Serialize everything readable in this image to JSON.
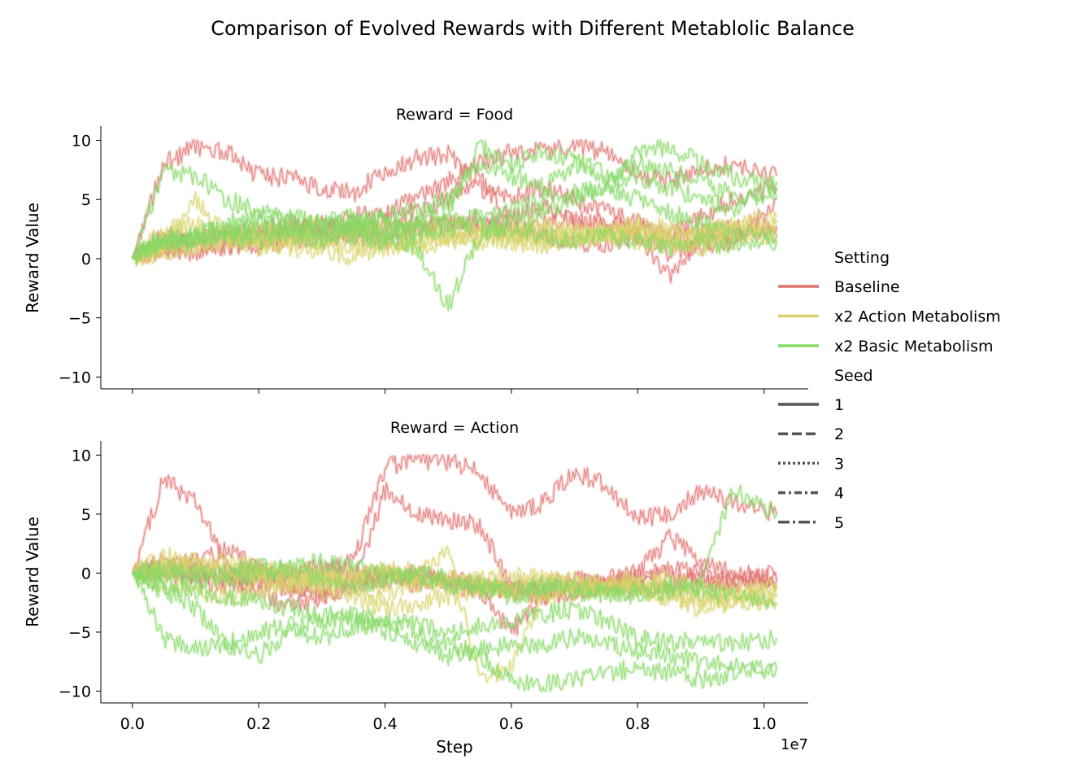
{
  "figure": {
    "title": "Comparison of Evolved Rewards with Different Metablolic Balance",
    "x_label": "Step",
    "x_offset_label": "1e7",
    "y_label": "Reward Value"
  },
  "legend": {
    "setting_title": "Setting",
    "seed_title": "Seed",
    "settings": [
      {
        "label": "Baseline",
        "color": "#e07370"
      },
      {
        "label": "x2 Action Metabolism",
        "color": "#d9d36a"
      },
      {
        "label": "x2 Basic Metabolism",
        "color": "#86d964"
      }
    ],
    "seeds": [
      {
        "label": "1",
        "dash": "solid"
      },
      {
        "label": "2",
        "dash": "dashed"
      },
      {
        "label": "3",
        "dash": "dotted"
      },
      {
        "label": "4",
        "dash": "dashdot-short"
      },
      {
        "label": "5",
        "dash": "dashdot-long"
      }
    ]
  },
  "chart_data": [
    {
      "type": "line",
      "title": "Reward = Food",
      "xlabel": "",
      "ylabel": "Reward Value",
      "xlim": [
        -0.05,
        1.07
      ],
      "ylim": [
        -11,
        11.2
      ],
      "x_unit": "1e7 steps",
      "xticks": [
        "0.0",
        "0.2",
        "0.4",
        "0.6",
        "0.8",
        "1.0"
      ],
      "yticks": [
        "10",
        "5",
        "0",
        "−5",
        "−10"
      ],
      "ytick_values": [
        10,
        5,
        0,
        -5,
        -10
      ],
      "grid": false,
      "legend_position": "right",
      "x": [
        0.0,
        0.05,
        0.1,
        0.15,
        0.2,
        0.25,
        0.3,
        0.35,
        0.4,
        0.45,
        0.5,
        0.55,
        0.6,
        0.65,
        0.7,
        0.75,
        0.8,
        0.85,
        0.9,
        0.95,
        1.02
      ],
      "series": [
        {
          "name": "Baseline",
          "seed": "1",
          "values": [
            0,
            1.2,
            1.6,
            1.8,
            1.5,
            2.0,
            2.2,
            2.5,
            2.4,
            2.8,
            3.0,
            2.5,
            3.5,
            4.5,
            3.0,
            2.8,
            2.5,
            2.0,
            2.2,
            2.5,
            2.8
          ]
        },
        {
          "name": "Baseline",
          "seed": "2",
          "values": [
            0,
            8.0,
            9.5,
            9.0,
            7.0,
            6.8,
            6.0,
            5.5,
            7.5,
            8.5,
            8.8,
            6.0,
            5.0,
            6.0,
            5.0,
            4.0,
            3.0,
            2.0,
            3.5,
            5.0,
            6.0
          ]
        },
        {
          "name": "Baseline",
          "seed": "3",
          "values": [
            0,
            0.8,
            1.0,
            1.2,
            1.0,
            1.5,
            1.8,
            2.0,
            1.5,
            2.5,
            3.0,
            3.5,
            2.5,
            3.0,
            3.5,
            3.0,
            2.0,
            -1.5,
            1.5,
            2.0,
            2.5
          ]
        },
        {
          "name": "Baseline",
          "seed": "4",
          "values": [
            0,
            2.0,
            1.5,
            2.2,
            2.5,
            3.0,
            2.5,
            3.5,
            4.0,
            5.0,
            6.5,
            8.0,
            9.0,
            9.2,
            9.5,
            9.0,
            7.0,
            6.5,
            7.5,
            8.0,
            7.0
          ]
        },
        {
          "name": "Baseline",
          "seed": "5",
          "values": [
            0,
            1.0,
            0.5,
            1.0,
            2.0,
            2.5,
            3.0,
            2.0,
            3.0,
            4.0,
            5.0,
            7.0,
            3.0,
            2.0,
            1.5,
            1.0,
            2.0,
            0.5,
            1.0,
            1.5,
            5.0
          ]
        },
        {
          "name": "x2 Action Metabolism",
          "seed": "1",
          "values": [
            0,
            2.5,
            3.0,
            2.0,
            1.5,
            1.0,
            0.5,
            0.0,
            1.0,
            1.5,
            2.0,
            1.5,
            1.8,
            2.0,
            1.5,
            2.0,
            2.5,
            2.0,
            2.2,
            2.5,
            3.0
          ]
        },
        {
          "name": "x2 Action Metabolism",
          "seed": "2",
          "values": [
            0,
            1.0,
            2.0,
            1.5,
            1.0,
            2.0,
            1.5,
            1.0,
            2.0,
            2.5,
            2.0,
            1.8,
            1.5,
            1.0,
            1.5,
            2.0,
            1.5,
            1.0,
            1.5,
            2.0,
            2.0
          ]
        },
        {
          "name": "x2 Action Metabolism",
          "seed": "3",
          "values": [
            0,
            1.5,
            1.0,
            2.0,
            2.5,
            2.0,
            1.5,
            2.5,
            2.0,
            1.0,
            1.5,
            2.0,
            2.5,
            3.0,
            2.5,
            2.0,
            3.0,
            2.5,
            2.0,
            3.0,
            3.5
          ]
        },
        {
          "name": "x2 Action Metabolism",
          "seed": "4",
          "values": [
            0,
            0.5,
            1.0,
            1.5,
            2.0,
            2.5,
            3.0,
            2.5,
            3.0,
            2.5,
            3.0,
            2.5,
            2.0,
            1.5,
            2.0,
            2.5,
            2.0,
            1.5,
            1.0,
            1.5,
            2.0
          ]
        },
        {
          "name": "x2 Action Metabolism",
          "seed": "5",
          "values": [
            0,
            1.0,
            5.0,
            2.0,
            1.5,
            1.0,
            2.0,
            1.5,
            1.0,
            1.5,
            2.0,
            2.5,
            2.0,
            2.5,
            1.5,
            2.0,
            2.5,
            1.5,
            2.0,
            2.5,
            3.0
          ]
        },
        {
          "name": "x2 Basic Metabolism",
          "seed": "1",
          "values": [
            0,
            7.5,
            7.0,
            5.0,
            4.0,
            3.5,
            3.0,
            3.0,
            3.5,
            4.0,
            5.0,
            8.0,
            7.0,
            6.0,
            8.0,
            6.0,
            7.0,
            6.0,
            5.0,
            4.0,
            6.5
          ]
        },
        {
          "name": "x2 Basic Metabolism",
          "seed": "2",
          "values": [
            0,
            1.5,
            2.0,
            2.5,
            3.0,
            2.5,
            2.0,
            2.5,
            2.0,
            2.5,
            3.0,
            3.5,
            4.0,
            5.0,
            5.5,
            6.0,
            5.0,
            4.0,
            3.0,
            2.0,
            2.0
          ]
        },
        {
          "name": "x2 Basic Metabolism",
          "seed": "3",
          "values": [
            0,
            2.0,
            1.5,
            2.0,
            2.5,
            2.0,
            1.5,
            2.0,
            1.5,
            1.0,
            -4.0,
            2.0,
            3.0,
            4.0,
            5.0,
            6.0,
            9.0,
            9.5,
            8.0,
            7.0,
            6.0
          ]
        },
        {
          "name": "x2 Basic Metabolism",
          "seed": "4",
          "values": [
            0,
            1.0,
            1.5,
            2.0,
            1.5,
            2.5,
            3.0,
            3.5,
            2.0,
            3.0,
            4.0,
            9.5,
            8.0,
            9.0,
            8.5,
            7.0,
            8.0,
            7.5,
            6.5,
            5.5,
            5.0
          ]
        },
        {
          "name": "x2 Basic Metabolism",
          "seed": "5",
          "values": [
            0,
            1.5,
            2.0,
            3.0,
            3.5,
            3.0,
            2.5,
            3.0,
            3.5,
            2.0,
            2.5,
            3.0,
            2.5,
            2.0,
            1.5,
            2.0,
            1.5,
            1.0,
            1.5,
            1.0,
            1.5
          ]
        }
      ]
    },
    {
      "type": "line",
      "title": "Reward = Action",
      "xlabel": "Step",
      "ylabel": "Reward Value",
      "xlim": [
        -0.05,
        1.07
      ],
      "ylim": [
        -11,
        11.2
      ],
      "x_unit": "1e7 steps",
      "xticks": [
        "0.0",
        "0.2",
        "0.4",
        "0.6",
        "0.8",
        "1.0"
      ],
      "yticks": [
        "10",
        "5",
        "0",
        "−5",
        "−10"
      ],
      "ytick_values": [
        10,
        5,
        0,
        -5,
        -10
      ],
      "grid": false,
      "legend_position": "right",
      "x": [
        0.0,
        0.05,
        0.1,
        0.15,
        0.2,
        0.25,
        0.3,
        0.35,
        0.4,
        0.45,
        0.5,
        0.55,
        0.6,
        0.65,
        0.7,
        0.75,
        0.8,
        0.85,
        0.9,
        0.95,
        1.02
      ],
      "series": [
        {
          "name": "Baseline",
          "seed": "1",
          "values": [
            0,
            8.0,
            6.0,
            0.5,
            0.0,
            -0.5,
            0.0,
            1.0,
            9.0,
            9.5,
            9.5,
            8.5,
            5.0,
            6.0,
            8.5,
            7.5,
            4.5,
            5.0,
            7.0,
            6.0,
            5.0
          ]
        },
        {
          "name": "Baseline",
          "seed": "2",
          "values": [
            0,
            0.5,
            1.0,
            2.0,
            0.5,
            -1.0,
            -2.0,
            -1.0,
            7.0,
            5.0,
            4.5,
            4.0,
            -1.0,
            -1.5,
            -1.0,
            -0.5,
            0.0,
            3.0,
            1.0,
            0.0,
            -0.5
          ]
        },
        {
          "name": "Baseline",
          "seed": "3",
          "values": [
            0,
            0.0,
            -0.5,
            -1.0,
            -0.5,
            -1.5,
            -1.0,
            -0.5,
            0.0,
            -0.5,
            -1.0,
            -1.5,
            -5.0,
            -2.0,
            -1.5,
            -1.0,
            -0.5,
            0.0,
            -0.5,
            -1.0,
            0.0
          ]
        },
        {
          "name": "Baseline",
          "seed": "4",
          "values": [
            0,
            0.5,
            0.0,
            -0.5,
            -1.5,
            -3.0,
            -2.0,
            -1.0,
            -0.5,
            0.0,
            -0.5,
            -1.0,
            -1.5,
            -1.0,
            -0.5,
            -1.0,
            -1.5,
            -1.0,
            -0.5,
            -1.0,
            -1.0
          ]
        },
        {
          "name": "Baseline",
          "seed": "5",
          "values": [
            0,
            1.0,
            0.5,
            0.0,
            -0.5,
            0.0,
            0.5,
            0.0,
            -0.5,
            -1.0,
            -0.5,
            -1.0,
            -1.5,
            -2.0,
            -1.5,
            -1.0,
            -0.5,
            0.5,
            0.0,
            -0.5,
            -0.5
          ]
        },
        {
          "name": "x2 Action Metabolism",
          "seed": "1",
          "values": [
            0,
            1.5,
            0.5,
            0.0,
            -0.5,
            -1.0,
            -0.5,
            -1.5,
            -2.0,
            -1.0,
            -0.5,
            -1.0,
            -1.5,
            -1.0,
            -0.5,
            -1.0,
            -1.5,
            -2.0,
            -2.5,
            -2.0,
            -2.0
          ]
        },
        {
          "name": "x2 Action Metabolism",
          "seed": "2",
          "values": [
            0,
            0.5,
            0.0,
            -0.5,
            0.0,
            0.5,
            0.0,
            -0.5,
            -1.0,
            0.0,
            2.0,
            -9.0,
            -8.0,
            -2.0,
            -1.5,
            -1.0,
            -1.5,
            -2.0,
            -3.0,
            -2.5,
            -2.0
          ]
        },
        {
          "name": "x2 Action Metabolism",
          "seed": "3",
          "values": [
            0,
            -1.0,
            -1.5,
            -2.0,
            -1.5,
            -1.0,
            -1.5,
            -2.0,
            -3.0,
            -2.5,
            -2.0,
            -1.5,
            -1.0,
            -0.5,
            -1.0,
            -1.5,
            -1.0,
            -1.5,
            -2.0,
            -2.5,
            -2.5
          ]
        },
        {
          "name": "x2 Action Metabolism",
          "seed": "4",
          "values": [
            0,
            0.5,
            1.0,
            0.5,
            0.0,
            -0.5,
            -1.0,
            -0.5,
            0.0,
            -0.5,
            -1.0,
            -0.5,
            0.0,
            -0.5,
            -1.0,
            -1.5,
            -1.0,
            -0.5,
            -1.0,
            -1.5,
            -1.0
          ]
        },
        {
          "name": "x2 Action Metabolism",
          "seed": "5",
          "values": [
            0,
            0.0,
            0.5,
            1.0,
            0.5,
            0.0,
            -0.5,
            0.0,
            0.5,
            0.0,
            -0.5,
            -1.0,
            -1.5,
            -2.0,
            -1.5,
            -1.0,
            -0.5,
            -1.0,
            -1.5,
            -2.0,
            -1.5
          ]
        },
        {
          "name": "x2 Basic Metabolism",
          "seed": "1",
          "values": [
            0,
            -5.5,
            -6.5,
            -6.0,
            -5.0,
            -4.5,
            -4.0,
            -3.5,
            -4.0,
            -4.5,
            -5.0,
            -4.5,
            -4.0,
            -3.5,
            -3.0,
            -4.0,
            -5.5,
            -6.0,
            -5.5,
            -6.0,
            -5.5
          ]
        },
        {
          "name": "x2 Basic Metabolism",
          "seed": "2",
          "values": [
            0,
            -1.5,
            -3.0,
            -6.0,
            -7.0,
            -5.0,
            -5.5,
            -4.5,
            -4.0,
            -5.0,
            -6.0,
            -7.0,
            -9.0,
            -9.5,
            -9.0,
            -8.5,
            -8.0,
            -8.5,
            -9.0,
            -8.5,
            -8.0
          ]
        },
        {
          "name": "x2 Basic Metabolism",
          "seed": "3",
          "values": [
            0,
            -1.0,
            -1.5,
            -2.0,
            -2.5,
            -3.0,
            -3.5,
            -4.0,
            -5.0,
            -6.0,
            -7.0,
            -6.5,
            -6.0,
            -6.0,
            -5.5,
            -6.0,
            -6.5,
            -7.0,
            -7.5,
            -8.0,
            -8.0
          ]
        },
        {
          "name": "x2 Basic Metabolism",
          "seed": "4",
          "values": [
            0,
            0.5,
            0.0,
            -0.5,
            0.0,
            0.5,
            1.0,
            0.5,
            0.0,
            -0.5,
            -1.0,
            -1.5,
            -2.0,
            -1.5,
            -1.0,
            -1.5,
            -2.0,
            -1.5,
            -1.0,
            7.0,
            5.0
          ]
        },
        {
          "name": "x2 Basic Metabolism",
          "seed": "5",
          "values": [
            0,
            0.0,
            -0.5,
            0.0,
            0.5,
            0.0,
            -0.5,
            -1.0,
            -0.5,
            0.0,
            -0.5,
            -1.0,
            -1.5,
            -1.0,
            -1.5,
            -2.0,
            -1.5,
            -1.0,
            -1.5,
            -2.0,
            -2.5
          ]
        }
      ]
    }
  ]
}
